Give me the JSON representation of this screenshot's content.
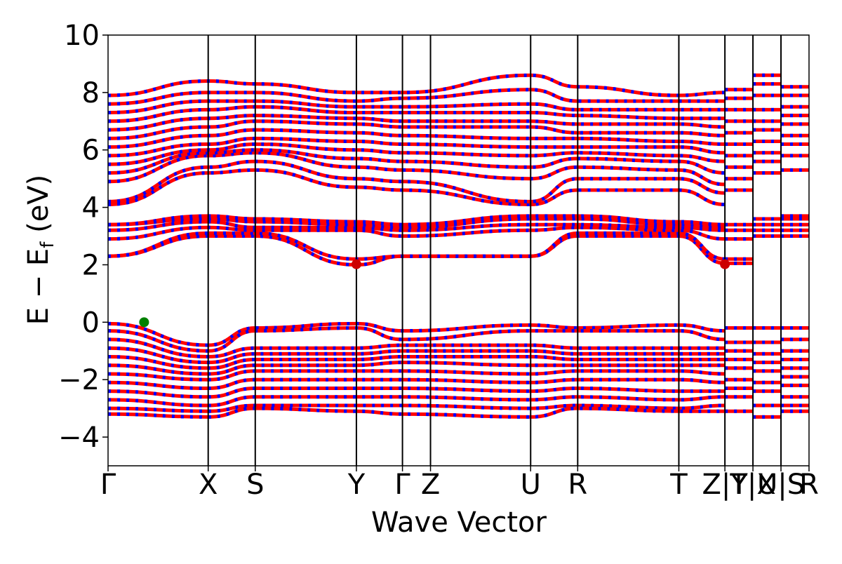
{
  "chart_data": {
    "type": "line",
    "title": "",
    "xlabel": "Wave Vector",
    "ylabel": "E − E",
    "ylabel_sub": "f",
    "ylabel_unit": " (eV)",
    "ylim": [
      -5,
      10
    ],
    "yticks": [
      -4,
      -2,
      0,
      2,
      4,
      6,
      8,
      10
    ],
    "ytick_labels": [
      "−4",
      "−2",
      "0",
      "2",
      "4",
      "6",
      "8",
      "10"
    ],
    "xlim": [
      0,
      7.0
    ],
    "kpoints": [
      {
        "label": "Γ",
        "x": 0.0
      },
      {
        "label": "X",
        "x": 1.0
      },
      {
        "label": "S",
        "x": 1.47
      },
      {
        "label": "Y",
        "x": 2.48
      },
      {
        "label": "Γ",
        "x": 2.94
      },
      {
        "label": "Z",
        "x": 3.22
      },
      {
        "label": "U",
        "x": 4.22
      },
      {
        "label": "R",
        "x": 4.69
      },
      {
        "label": "T",
        "x": 5.7
      },
      {
        "label": "Z|Y",
        "x": 6.16
      },
      {
        "label": "T|X",
        "x": 6.44
      },
      {
        "label": "U|S",
        "x": 6.72
      },
      {
        "label": "R",
        "x": 7.0
      }
    ],
    "series_colors": {
      "spin_up": "#ff0000",
      "spin_down": "#0000ff"
    },
    "vbm": {
      "x": 0.36,
      "y": 0.0,
      "color": "#008000"
    },
    "cbm": [
      {
        "x": 2.48,
        "y": 2.02,
        "color": "#cc0000"
      },
      {
        "x": 6.16,
        "y": 2.02,
        "color": "#cc0000"
      }
    ],
    "conduction_bands_upper": [
      [
        4.1,
        5.2,
        5.3,
        4.7,
        4.6,
        4.1,
        4.6,
        4.6,
        4.1
      ],
      [
        4.2,
        5.4,
        5.6,
        5.0,
        4.9,
        4.2,
        5.0,
        5.0,
        4.5
      ],
      [
        4.9,
        5.8,
        5.9,
        5.4,
        5.3,
        5.0,
        5.4,
        5.3,
        4.8
      ],
      [
        5.2,
        5.9,
        6.0,
        5.7,
        5.6,
        5.4,
        5.7,
        5.6,
        5.2
      ],
      [
        5.5,
        6.0,
        6.2,
        6.0,
        5.9,
        5.8,
        5.9,
        5.8,
        5.6
      ],
      [
        5.8,
        6.2,
        6.4,
        6.3,
        6.2,
        6.1,
        6.1,
        6.1,
        5.9
      ],
      [
        6.1,
        6.5,
        6.7,
        6.6,
        6.5,
        6.4,
        6.4,
        6.3,
        6.2
      ],
      [
        6.4,
        6.8,
        7.0,
        6.9,
        6.8,
        6.8,
        6.6,
        6.6,
        6.5
      ],
      [
        6.7,
        7.1,
        7.2,
        7.1,
        7.0,
        7.0,
        6.9,
        6.9,
        6.8
      ],
      [
        7.0,
        7.4,
        7.5,
        7.3,
        7.3,
        7.3,
        7.2,
        7.1,
        7.1
      ],
      [
        7.3,
        7.7,
        7.7,
        7.5,
        7.5,
        7.6,
        7.4,
        7.4,
        7.4
      ],
      [
        7.6,
        8.0,
        8.0,
        7.7,
        7.8,
        8.1,
        7.7,
        7.7,
        7.7
      ],
      [
        7.9,
        8.4,
        8.3,
        8.0,
        8.0,
        8.6,
        8.2,
        7.9,
        8.0
      ]
    ],
    "conduction_bands_lower": [
      [
        2.3,
        3.0,
        3.0,
        2.0,
        2.3,
        2.3,
        3.0,
        3.0,
        2.05
      ],
      [
        2.3,
        3.1,
        3.1,
        2.2,
        2.3,
        2.3,
        3.1,
        3.1,
        2.2
      ],
      [
        2.9,
        3.3,
        3.2,
        3.2,
        3.0,
        3.2,
        3.3,
        3.2,
        2.9
      ],
      [
        3.2,
        3.5,
        3.3,
        3.3,
        3.2,
        3.4,
        3.4,
        3.3,
        3.2
      ],
      [
        3.4,
        3.6,
        3.5,
        3.4,
        3.3,
        3.6,
        3.6,
        3.4,
        3.3
      ],
      [
        3.4,
        3.7,
        3.6,
        3.5,
        3.4,
        3.7,
        3.7,
        3.5,
        3.4
      ]
    ],
    "valence_bands": [
      [
        -0.05,
        -0.8,
        -0.2,
        -0.05,
        -0.3,
        -0.1,
        -0.2,
        -0.1,
        -0.3
      ],
      [
        -0.3,
        -1.0,
        -0.3,
        -0.2,
        -0.6,
        -0.3,
        -0.3,
        -0.3,
        -0.6
      ],
      [
        -0.6,
        -1.2,
        -0.9,
        -0.9,
        -0.8,
        -0.8,
        -0.9,
        -0.9,
        -0.9
      ],
      [
        -0.9,
        -1.4,
        -1.1,
        -1.1,
        -1.0,
        -1.0,
        -1.1,
        -1.1,
        -1.1
      ],
      [
        -1.2,
        -1.6,
        -1.3,
        -1.3,
        -1.2,
        -1.2,
        -1.3,
        -1.3,
        -1.3
      ],
      [
        -1.5,
        -1.8,
        -1.5,
        -1.5,
        -1.4,
        -1.5,
        -1.5,
        -1.5,
        -1.5
      ],
      [
        -1.8,
        -2.0,
        -1.7,
        -1.7,
        -1.7,
        -1.8,
        -1.7,
        -1.7,
        -1.8
      ],
      [
        -2.1,
        -2.3,
        -2.0,
        -2.0,
        -2.0,
        -2.1,
        -2.0,
        -2.0,
        -2.1
      ],
      [
        -2.4,
        -2.6,
        -2.3,
        -2.3,
        -2.3,
        -2.4,
        -2.3,
        -2.4,
        -2.4
      ],
      [
        -2.7,
        -2.9,
        -2.6,
        -2.6,
        -2.6,
        -2.7,
        -2.6,
        -2.7,
        -2.6
      ],
      [
        -3.0,
        -3.1,
        -2.9,
        -2.9,
        -2.9,
        -3.0,
        -2.9,
        -3.0,
        -2.9
      ],
      [
        -3.2,
        -3.3,
        -3.0,
        -3.1,
        -3.2,
        -3.3,
        -3.0,
        -3.1,
        -3.1
      ]
    ],
    "band_x": [
      0.0,
      1.0,
      1.47,
      2.48,
      2.94,
      4.22,
      4.69,
      5.7,
      6.16
    ],
    "tail_segments": [
      {
        "x0": 6.16,
        "x1": 6.44,
        "values": [
          -0.2,
          -0.7,
          -1.0,
          -1.3,
          -1.6,
          -2.0,
          -2.3,
          -2.6,
          -3.1,
          2.05,
          2.2,
          2.9,
          3.2,
          3.4,
          4.6,
          5.0,
          5.4,
          5.8,
          6.2,
          6.6,
          7.0,
          7.4,
          7.8,
          8.1
        ]
      },
      {
        "x0": 6.44,
        "x1": 6.72,
        "values": [
          -0.2,
          -0.7,
          -1.1,
          -1.4,
          -1.7,
          -2.1,
          -2.4,
          -2.9,
          -3.3,
          3.0,
          3.2,
          3.4,
          3.6,
          5.2,
          5.6,
          5.9,
          6.3,
          6.7,
          7.0,
          7.4,
          7.9,
          8.3,
          8.6
        ]
      },
      {
        "x0": 6.72,
        "x1": 7.0,
        "values": [
          -0.2,
          -0.6,
          -1.0,
          -1.3,
          -1.6,
          -1.9,
          -2.2,
          -2.6,
          -2.9,
          -3.1,
          3.0,
          3.2,
          3.4,
          3.6,
          3.7,
          5.3,
          5.8,
          6.2,
          6.5,
          6.9,
          7.2,
          7.5,
          7.9,
          8.2
        ]
      }
    ]
  }
}
